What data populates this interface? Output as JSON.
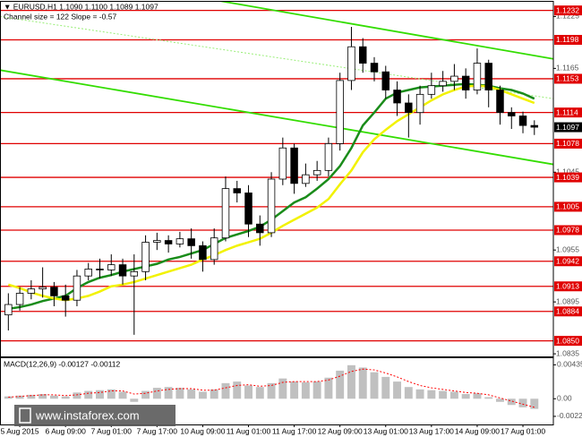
{
  "chart_data": [
    {
      "type": "candlestick",
      "title": "▼ EURUSD,H1  1.1090 1.1100 1.1089 1.1097",
      "subtitle": "Channel size = 122 Slope = -0.57",
      "categories": [
        null,
        "5 Aug 2015",
        null,
        null,
        null,
        "6 Aug 09:00",
        null,
        null,
        null,
        "7 Aug 01:00",
        null,
        null,
        null,
        "7 Aug 17:00",
        null,
        null,
        null,
        "10 Aug 09:00",
        null,
        null,
        null,
        "11 Aug 01:00",
        null,
        null,
        null,
        "11 Aug 17:00",
        null,
        null,
        null,
        "12 Aug 09:00",
        null,
        null,
        null,
        "13 Aug 01:00",
        null,
        null,
        null,
        "13 Aug 17:00",
        null,
        null,
        null,
        "14 Aug 09:00",
        null,
        null,
        null,
        "17 Aug 01:00",
        null
      ],
      "xlim": [
        -0.73,
        47.66
      ],
      "open": [
        1.088,
        1.0892,
        1.0905,
        1.091,
        1.0912,
        1.0902,
        1.0897,
        1.0925,
        1.0933,
        1.0932,
        1.0938,
        1.0925,
        1.093,
        1.0964,
        1.0966,
        1.0962,
        1.0968,
        1.096,
        1.0944,
        1.0969,
        1.1026,
        1.1021,
        1.0985,
        1.0975,
        1.1037,
        1.1073,
        1.1032,
        1.1042,
        1.1047,
        1.1078,
        1.1151,
        1.119,
        1.1171,
        1.1161,
        1.114,
        1.1125,
        1.1114,
        1.1135,
        1.1145,
        1.115,
        1.1156,
        1.114,
        1.1171,
        1.114,
        1.1114,
        1.111,
        1.1099
      ],
      "high": [
        1.0905,
        1.0912,
        1.092,
        1.0935,
        1.0918,
        1.0915,
        1.0932,
        1.094,
        1.0945,
        1.095,
        1.0945,
        1.095,
        1.0972,
        1.0975,
        1.0972,
        1.0976,
        1.098,
        1.0965,
        1.098,
        1.104,
        1.1035,
        1.103,
        1.0995,
        1.1045,
        1.1085,
        1.1078,
        1.1055,
        1.1058,
        1.1085,
        1.116,
        1.1213,
        1.12,
        1.1178,
        1.1168,
        1.115,
        1.1135,
        1.1145,
        1.116,
        1.1162,
        1.117,
        1.1165,
        1.1188,
        1.1175,
        1.1145,
        1.112,
        1.1115,
        1.1105
      ],
      "low": [
        1.0862,
        1.0885,
        1.0898,
        1.09,
        1.089,
        1.0878,
        1.089,
        1.092,
        1.0922,
        1.0925,
        1.0915,
        1.0857,
        1.092,
        1.0955,
        1.0952,
        1.0958,
        1.0945,
        1.093,
        1.0938,
        1.0965,
        1.101,
        1.097,
        1.096,
        1.097,
        1.103,
        1.102,
        1.1028,
        1.1035,
        1.104,
        1.107,
        1.114,
        1.116,
        1.115,
        1.113,
        1.111,
        1.1085,
        1.11,
        1.113,
        1.1138,
        1.114,
        1.113,
        1.1135,
        1.112,
        1.11,
        1.1095,
        1.109,
        1.1088
      ],
      "close": [
        1.0892,
        1.0905,
        1.091,
        1.0912,
        1.0902,
        1.0897,
        1.0925,
        1.0933,
        1.0932,
        1.0938,
        1.0925,
        1.093,
        1.0964,
        1.0966,
        1.0962,
        1.0968,
        1.096,
        1.0944,
        1.0969,
        1.1026,
        1.1021,
        1.0985,
        1.0975,
        1.1037,
        1.1073,
        1.1032,
        1.1042,
        1.1047,
        1.1078,
        1.1151,
        1.119,
        1.1171,
        1.1161,
        1.114,
        1.1125,
        1.1114,
        1.1135,
        1.1145,
        1.115,
        1.1156,
        1.114,
        1.1171,
        1.114,
        1.1114,
        1.111,
        1.1099,
        1.1097
      ],
      "candle_color": "#000000",
      "series": [
        {
          "color": "#1a8c1a",
          "values": [
            1.0887,
            1.0889,
            1.0892,
            1.0896,
            1.0899,
            1.0902,
            1.0911,
            1.0918,
            1.0923,
            1.0926,
            1.093,
            1.0933,
            1.0936,
            1.0939,
            1.0944,
            1.0947,
            1.0951,
            1.0955,
            1.0962,
            1.0969,
            1.0973,
            1.0977,
            1.0982,
            1.099,
            1.1,
            1.101,
            1.1016,
            1.1026,
            1.1037,
            1.1052,
            1.1073,
            1.1099,
            1.1114,
            1.113,
            1.1137,
            1.114,
            1.1143,
            1.1144,
            1.1145,
            1.1146,
            1.1147,
            1.1146,
            1.1145,
            1.1142,
            1.114,
            1.1136,
            1.113
          ]
        },
        {
          "color": "#f2f200",
          "values": [
            1.0915,
            1.0911,
            1.0906,
            1.0902,
            1.0899,
            1.0897,
            1.0899,
            1.0902,
            1.0907,
            1.0913,
            1.0915,
            1.0918,
            1.0922,
            1.0926,
            1.093,
            1.0934,
            1.0938,
            1.0944,
            1.0949,
            1.0955,
            1.096,
            1.0964,
            1.0968,
            1.0975,
            1.0983,
            1.099,
            1.0997,
            1.1004,
            1.1014,
            1.1031,
            1.1047,
            1.1068,
            1.1083,
            1.1094,
            1.1104,
            1.1112,
            1.112,
            1.1128,
            1.1135,
            1.114,
            1.1144,
            1.1145,
            1.1144,
            1.114,
            1.1135,
            1.113,
            1.1125
          ]
        }
      ],
      "trend_lines": [
        {
          "x": [
            18.06,
            47.66
          ],
          "values": [
            1.1244,
            1.1176
          ],
          "color": "#33dd00",
          "dashed": false
        },
        {
          "x": [
            -0.73,
            47.66
          ],
          "values": [
            1.1163,
            1.1054
          ],
          "color": "#33dd00",
          "dashed": false
        },
        {
          "x": [
            -0.73,
            47.66
          ],
          "values": [
            1.1225,
            1.113
          ],
          "color": "#99ee77",
          "dashed": true
        }
      ],
      "ylim": [
        1.0832,
        1.1242
      ],
      "yticks": [
        1.1225,
        1.1165,
        1.1045,
        1.0955,
        1.0895,
        1.0835
      ],
      "levels": [
        1.1232,
        1.1198,
        1.1153,
        1.1114,
        1.1078,
        1.1039,
        1.1005,
        1.0978,
        1.0942,
        1.0913,
        1.0884,
        {
          "value": 1.085,
          "label": "1.0850"
        }
      ],
      "level_color": "#e00000",
      "current_price": 1.1097
    },
    {
      "type": "macd",
      "title": "MACD(12,26,9) -0.00127 -0.00112",
      "histogram": {
        "color": "#c0c0c0",
        "values": [
          0.0003,
          0.0004,
          0.0005,
          0.0006,
          0.0004,
          0.0003,
          0.0008,
          0.001,
          0.0011,
          0.0012,
          0.0009,
          -0.0004,
          0.001,
          0.0014,
          0.0015,
          0.0014,
          0.0012,
          0.0009,
          0.0012,
          0.002,
          0.0022,
          0.0017,
          0.0015,
          0.002,
          0.0026,
          0.0022,
          0.0021,
          0.0022,
          0.0027,
          0.0036,
          0.0043,
          0.004,
          0.0034,
          0.0028,
          0.0022,
          0.0015,
          0.0012,
          0.0011,
          0.001,
          0.0009,
          0.0006,
          0.0007,
          0.0002,
          -0.0004,
          -0.0008,
          -0.0011,
          -0.0013
        ]
      },
      "signal": {
        "color": "#ff0000",
        "values": [
          0.0002,
          0.0003,
          0.0004,
          0.0005,
          0.0005,
          0.0004,
          0.0005,
          0.0007,
          0.0008,
          0.001,
          0.001,
          0.0006,
          0.0007,
          0.001,
          0.0012,
          0.0013,
          0.0013,
          0.0011,
          0.0011,
          0.0014,
          0.0017,
          0.0018,
          0.0016,
          0.0017,
          0.0021,
          0.0022,
          0.0022,
          0.0022,
          0.0024,
          0.0029,
          0.0035,
          0.0038,
          0.0037,
          0.0033,
          0.0028,
          0.0022,
          0.0017,
          0.0014,
          0.0012,
          0.001,
          0.0008,
          0.0007,
          0.0005,
          0.0001,
          -0.0003,
          -0.0007,
          -0.0011
        ]
      },
      "ylim": [
        -0.0033,
        0.0052
      ],
      "yticks": [
        0.00435,
        {
          "value": 0,
          "label": "0.00"
        },
        -0.00226
      ]
    }
  ],
  "watermark": "www.instaforex.com"
}
